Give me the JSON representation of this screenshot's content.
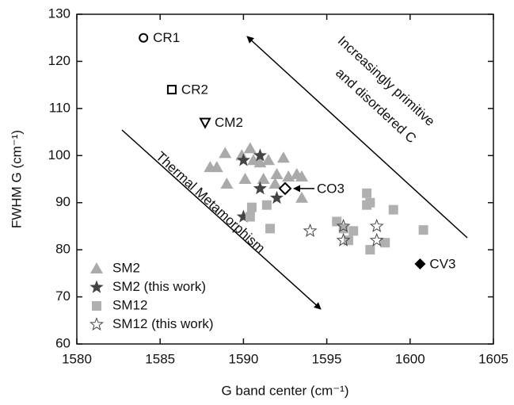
{
  "chart_data": {
    "type": "scatter",
    "x_label": "G band center (cm⁻¹)",
    "y_label": "FWHM G (cm⁻¹)",
    "xlim": [
      1580,
      1605
    ],
    "xticks": [
      1580,
      1585,
      1590,
      1595,
      1600,
      1605
    ],
    "ylim": [
      60,
      130
    ],
    "yticks": [
      60,
      70,
      80,
      90,
      100,
      110,
      120,
      130
    ],
    "legend": "lower left",
    "series": [
      {
        "name": "SM2",
        "marker": "triangle",
        "color": "#aaaaaa",
        "x": [
          1588.0,
          1588.4,
          1588.9,
          1589.0,
          1589.9,
          1590.1,
          1590.4,
          1590.6,
          1591.0,
          1591.2,
          1591.5,
          1591.9,
          1592.0,
          1592.4,
          1592.7,
          1593.2,
          1593.5,
          1593.5
        ],
        "values": [
          97.5,
          97.5,
          100.5,
          94,
          100,
          95,
          101.5,
          99,
          98.5,
          95,
          99,
          94,
          96,
          99.5,
          95.5,
          96,
          95.5,
          91
        ]
      },
      {
        "name": "SM2 (this work)",
        "marker": "star",
        "color": "#444444",
        "x": [
          1590.0,
          1591.0,
          1591.0,
          1590.0,
          1592.0
        ],
        "values": [
          99,
          100,
          93,
          87,
          91
        ]
      },
      {
        "name": "SM12",
        "marker": "square",
        "color": "#b0b0b0",
        "x": [
          1590.5,
          1590.4,
          1591.4,
          1591.6,
          1595.6,
          1596.0,
          1596.6,
          1596.3,
          1597.4,
          1597.4,
          1597.6,
          1597.6,
          1598.5,
          1599.0,
          1600.8
        ],
        "values": [
          89,
          87,
          89.5,
          84.5,
          86,
          84.5,
          84,
          82,
          92,
          89.5,
          90,
          80,
          81.5,
          88.5,
          84.2
        ]
      },
      {
        "name": "SM12 (this work)",
        "marker": "star-open",
        "color": "#444444",
        "x": [
          1594,
          1596,
          1596,
          1598,
          1598
        ],
        "values": [
          84,
          85,
          82,
          85,
          82
        ]
      }
    ],
    "labeled_points": [
      {
        "label": "CR1",
        "marker": "circle-open",
        "x": 1584,
        "y": 125
      },
      {
        "label": "CR2",
        "marker": "square-open",
        "x": 1585.7,
        "y": 114
      },
      {
        "label": "CM2",
        "marker": "triangle-down-open",
        "x": 1587.7,
        "y": 107
      },
      {
        "label": "CO3",
        "marker": "diamond-open",
        "x": 1592.5,
        "y": 93
      },
      {
        "label": "CV3",
        "marker": "diamond",
        "x": 1600.6,
        "y": 77
      }
    ],
    "annotations": [
      "Increasingly primitive",
      "and disordered C",
      "Thermal Metamorphism"
    ]
  }
}
